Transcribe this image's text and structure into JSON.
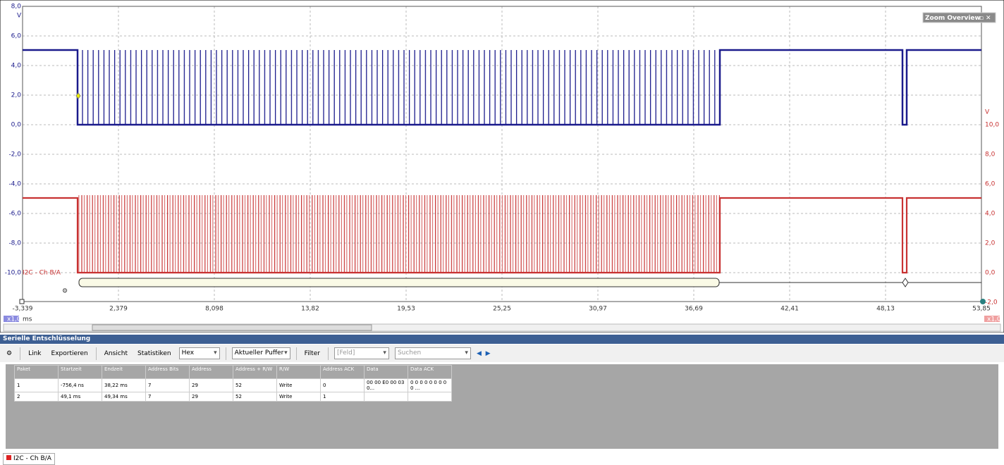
{
  "scope": {
    "left_unit": "V",
    "left_ticks": [
      "8,0",
      "6,0",
      "4,0",
      "2,0",
      "0,0",
      "-2,0",
      "-4,0",
      "-6,0",
      "-8,0",
      "-10,0"
    ],
    "right_unit": "V",
    "right_ticks": [
      "10,0",
      "8,0",
      "6,0",
      "4,0",
      "2,0",
      "0,0",
      "-2,0"
    ],
    "x_ticks": [
      "-3,339",
      "2,379",
      "8,098",
      "13,82",
      "19,53",
      "25,25",
      "30,97",
      "36,69",
      "42,41",
      "48,13",
      "53,85"
    ],
    "x_unit": "ms",
    "left_scale": "x1,0",
    "right_scale": "x1,0",
    "zoom_overview": "Zoom Overview",
    "decoder_label": "I2C - Ch B/A"
  },
  "panel": {
    "title": "Serielle Entschlüsselung",
    "toolbar": {
      "link": "Link",
      "export": "Exportieren",
      "view": "Ansicht",
      "stats": "Statistiken",
      "format": "Hex",
      "buffer": "Aktueller Puffer",
      "filter": "Filter",
      "field": "[Feld]",
      "search": "Suchen"
    }
  },
  "table": {
    "columns": [
      "Paket",
      "Startzeit",
      "Endzeit",
      "Address Bits",
      "Address",
      "Address + R/W",
      "R/W",
      "Address ACK",
      "Data",
      "Data ACK"
    ],
    "rows": [
      [
        "1",
        "-756,4 ns",
        "38,22 ms",
        "7",
        "29",
        "52",
        "Write",
        "0",
        "00 00 E0 00 03 0...",
        "0 0 0 0 0 0 0 0 0 ..."
      ],
      [
        "2",
        "49,1 ms",
        "49,34 ms",
        "7",
        "29",
        "52",
        "Write",
        "1",
        "",
        ""
      ]
    ]
  },
  "tab": "I2C - Ch B/A"
}
